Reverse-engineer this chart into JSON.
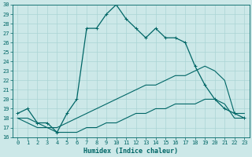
{
  "title": "",
  "xlabel": "Humidex (Indice chaleur)",
  "bg_color": "#cce8e8",
  "grid_color": "#aad4d4",
  "line_color": "#006666",
  "spine_color": "#006666",
  "xlim": [
    -0.5,
    23.5
  ],
  "ylim": [
    16,
    30
  ],
  "x_ticks": [
    0,
    1,
    2,
    3,
    4,
    5,
    6,
    7,
    8,
    9,
    10,
    11,
    12,
    13,
    14,
    15,
    16,
    17,
    18,
    19,
    20,
    21,
    22,
    23
  ],
  "y_ticks": [
    16,
    17,
    18,
    19,
    20,
    21,
    22,
    23,
    24,
    25,
    26,
    27,
    28,
    29,
    30
  ],
  "main_line": {
    "x": [
      0,
      1,
      2,
      3,
      4,
      5,
      6,
      7,
      8,
      9,
      10,
      11,
      12,
      13,
      14,
      15,
      16,
      17,
      18,
      19,
      20,
      21,
      22,
      23
    ],
    "y": [
      18.5,
      19.0,
      17.5,
      17.5,
      16.5,
      18.5,
      20.0,
      27.5,
      27.5,
      29.0,
      30.0,
      28.5,
      27.5,
      26.5,
      27.5,
      26.5,
      26.5,
      26.0,
      23.5,
      21.5,
      20.0,
      19.0,
      18.5,
      18.0
    ]
  },
  "line2": {
    "x": [
      0,
      1,
      2,
      3,
      4,
      5,
      6,
      7,
      8,
      9,
      10,
      11,
      12,
      13,
      14,
      15,
      16,
      17,
      18,
      19,
      20,
      21,
      22,
      23
    ],
    "y": [
      18.0,
      18.0,
      17.5,
      17.0,
      17.0,
      17.5,
      18.0,
      18.5,
      19.0,
      19.5,
      20.0,
      20.5,
      21.0,
      21.5,
      21.5,
      22.0,
      22.5,
      22.5,
      23.0,
      23.5,
      23.0,
      22.0,
      18.5,
      18.5
    ]
  },
  "line3": {
    "x": [
      0,
      1,
      2,
      3,
      4,
      5,
      6,
      7,
      8,
      9,
      10,
      11,
      12,
      13,
      14,
      15,
      16,
      17,
      18,
      19,
      20,
      21,
      22,
      23
    ],
    "y": [
      18.0,
      17.5,
      17.0,
      17.0,
      16.5,
      16.5,
      16.5,
      17.0,
      17.0,
      17.5,
      17.5,
      18.0,
      18.5,
      18.5,
      19.0,
      19.0,
      19.5,
      19.5,
      19.5,
      20.0,
      20.0,
      19.5,
      18.0,
      18.0
    ]
  },
  "xlabel_fontsize": 6,
  "tick_fontsize": 5,
  "linewidth_main": 0.9,
  "linewidth_other": 0.8,
  "marker": "+",
  "markersize": 3.0,
  "markeredgewidth": 0.7
}
